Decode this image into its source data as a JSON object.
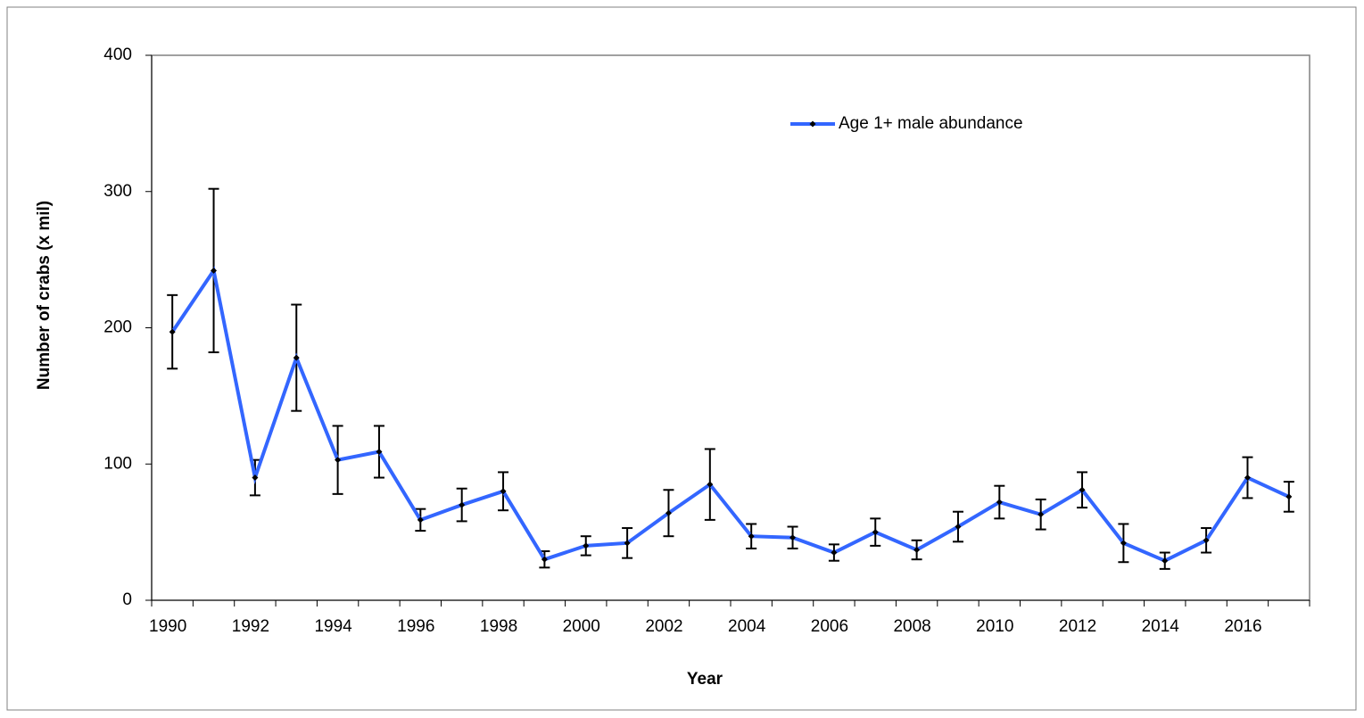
{
  "chart_data": {
    "type": "line",
    "x_label": "Year",
    "y_label": "Number of crabs (x mil)",
    "categories": [
      "1990",
      null,
      "1992",
      null,
      "1994",
      null,
      "1996",
      null,
      "1998",
      null,
      "2000",
      null,
      "2002",
      null,
      "2004",
      null,
      "2006",
      null,
      "2008",
      null,
      "2010",
      null,
      "2012",
      null,
      "2014",
      null,
      "2016",
      null
    ],
    "series": [
      {
        "name": "Age 1+ male abundance",
        "color": "#3366ff",
        "values": [
          197,
          242,
          90,
          178,
          103,
          109,
          59,
          70,
          80,
          30,
          40,
          42,
          64,
          85,
          47,
          46,
          35,
          50,
          37,
          54,
          72,
          63,
          81,
          42,
          29,
          44,
          90,
          76
        ],
        "errors": [
          27,
          60,
          13,
          39,
          25,
          19,
          8,
          12,
          14,
          6,
          7,
          11,
          17,
          26,
          9,
          8,
          6,
          10,
          7,
          11,
          12,
          11,
          13,
          14,
          6,
          9,
          15,
          11
        ]
      }
    ],
    "ylim": [
      0,
      400
    ],
    "yticks": [
      0,
      100,
      200,
      300,
      400
    ],
    "grid": false,
    "legend": "top-right"
  }
}
